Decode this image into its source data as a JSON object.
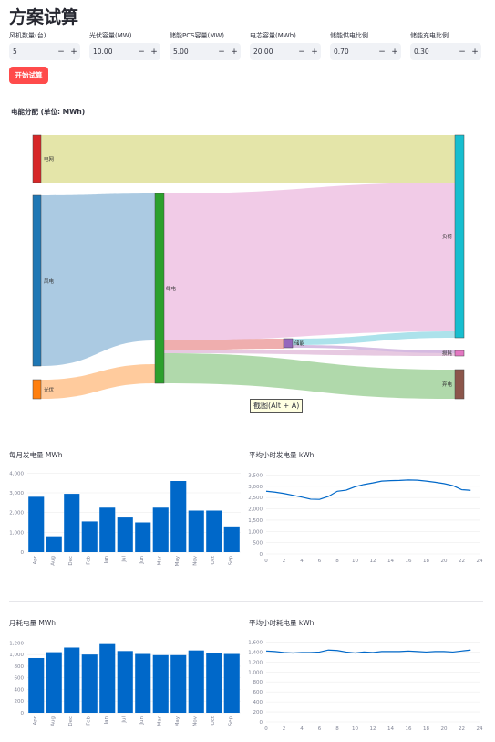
{
  "app": {
    "title": "方案试算",
    "run_button": "开始试算"
  },
  "params": [
    {
      "label": "风机数量(台)",
      "value": "5"
    },
    {
      "label": "光伏容量(MW)",
      "value": "10.00"
    },
    {
      "label": "储能PCS容量(MW)",
      "value": "5.00"
    },
    {
      "label": "电芯容量(MWh)",
      "value": "20.00"
    },
    {
      "label": "储能供电比例",
      "value": "0.70"
    },
    {
      "label": "储能充电比例",
      "value": "0.30"
    }
  ],
  "stepper": {
    "minus": "−",
    "plus": "+"
  },
  "sankey": {
    "title": "电能分配 (单位: MWh)",
    "nodes": {
      "left1": "电网",
      "left2": "风电",
      "left3": "光伏",
      "mid": "绿电",
      "storage": "储能",
      "load": "负荷",
      "right2": "损耗",
      "right3": "弃电"
    },
    "colors": {
      "red": "#d62728",
      "blue": "#1f77b4",
      "orange": "#ff7f0e",
      "green": "#2ca02c",
      "purple": "#9467bd",
      "cyan": "#17becf",
      "pink": "#e377c2",
      "brown": "#8c564b"
    }
  },
  "tooltip": "截图(Alt + A)",
  "chart_data": [
    {
      "type": "bar",
      "title": "每月发电量 MWh",
      "categories": [
        "Apr",
        "Aug",
        "Dec",
        "Feb",
        "Jan",
        "Jul",
        "Jun",
        "Mar",
        "May",
        "Nov",
        "Oct",
        "Sep"
      ],
      "values": [
        2800,
        800,
        2950,
        1550,
        2250,
        1750,
        1500,
        2250,
        3600,
        2100,
        2100,
        1300
      ],
      "ylim": [
        0,
        4200
      ],
      "yticks": [
        0,
        1000,
        2000,
        3000,
        4000
      ],
      "ytick_labels": [
        "0",
        "1,000",
        "2,000",
        "3,000",
        "4,000"
      ],
      "color": "#0068c9"
    },
    {
      "type": "line",
      "title": "平均小时发电量 kWh",
      "x": [
        0,
        1,
        2,
        3,
        4,
        5,
        6,
        7,
        8,
        9,
        10,
        11,
        12,
        13,
        14,
        15,
        16,
        17,
        18,
        19,
        20,
        21,
        22,
        23
      ],
      "values": [
        2780,
        2740,
        2680,
        2600,
        2520,
        2430,
        2420,
        2550,
        2780,
        2830,
        2980,
        3080,
        3150,
        3230,
        3250,
        3260,
        3280,
        3270,
        3230,
        3180,
        3120,
        3030,
        2850,
        2820
      ],
      "xlim": [
        0,
        24
      ],
      "xticks": [
        0,
        2,
        4,
        6,
        8,
        10,
        12,
        14,
        16,
        18,
        20,
        22,
        24
      ],
      "ylim": [
        0,
        3600
      ],
      "yticks": [
        0,
        500,
        1000,
        1500,
        2000,
        2500,
        3000,
        3500
      ],
      "ytick_labels": [
        "0",
        "500",
        "1,000",
        "1,500",
        "2,000",
        "2,500",
        "3,000",
        "3,500"
      ],
      "color": "#0068c9"
    },
    {
      "type": "bar",
      "title": "月耗电量 MWh",
      "categories": [
        "Apr",
        "Aug",
        "Dec",
        "Feb",
        "Jan",
        "Jul",
        "Jun",
        "Mar",
        "May",
        "Nov",
        "Oct",
        "Sep"
      ],
      "values": [
        940,
        1040,
        1120,
        1000,
        1180,
        1060,
        1010,
        990,
        990,
        1070,
        1020,
        1010
      ],
      "ylim": [
        0,
        1300
      ],
      "yticks": [
        0,
        200,
        400,
        600,
        800,
        1000,
        1200
      ],
      "ytick_labels": [
        "0",
        "200",
        "400",
        "600",
        "800",
        "1,000",
        "1,200"
      ],
      "color": "#0068c9"
    },
    {
      "type": "line",
      "title": "平均小时耗电量 kWh",
      "x": [
        0,
        1,
        2,
        3,
        4,
        5,
        6,
        7,
        8,
        9,
        10,
        11,
        12,
        13,
        14,
        15,
        16,
        17,
        18,
        19,
        20,
        21,
        22,
        23
      ],
      "values": [
        1420,
        1410,
        1390,
        1380,
        1390,
        1390,
        1400,
        1440,
        1430,
        1400,
        1380,
        1400,
        1390,
        1410,
        1410,
        1410,
        1420,
        1410,
        1400,
        1410,
        1410,
        1400,
        1420,
        1440
      ],
      "xlim": [
        0,
        24
      ],
      "xticks": [
        0,
        2,
        4,
        6,
        8,
        10,
        12,
        14,
        16,
        18,
        20,
        22,
        24
      ],
      "ylim": [
        0,
        1700
      ],
      "yticks": [
        0,
        200,
        400,
        600,
        800,
        1000,
        1200,
        1400,
        1600
      ],
      "ytick_labels": [
        "0",
        "200",
        "400",
        "600",
        "800",
        "1,000",
        "1,200",
        "1,400",
        "1,600"
      ],
      "color": "#0068c9"
    }
  ]
}
